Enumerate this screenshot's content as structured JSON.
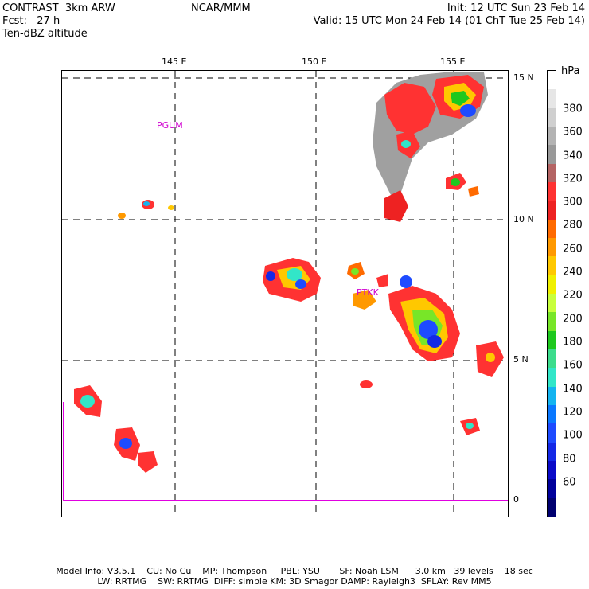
{
  "header": {
    "title": "CONTRAST  3km ARW",
    "forecast": "Fcst:   27 h",
    "field": "Ten-dBZ altitude",
    "center": "NCAR/MMM",
    "init": "Init: 12 UTC Sun 23 Feb 14",
    "valid": "Valid: 15 UTC Mon 24 Feb 14 (01 ChT Tue 25 Feb 14)"
  },
  "map": {
    "lon_labels": [
      "145 E",
      "150 E",
      "155 E"
    ],
    "lat_labels": [
      "15 N",
      "10 N",
      "5 N",
      "0"
    ],
    "stations": [
      {
        "name": "PGUM"
      },
      {
        "name": "PTKK"
      }
    ]
  },
  "legend": {
    "unit": "hPa",
    "levels": [
      "380",
      "360",
      "340",
      "320",
      "300",
      "280",
      "260",
      "240",
      "220",
      "200",
      "180",
      "160",
      "140",
      "120",
      "100",
      "80",
      "60"
    ],
    "colors": [
      "#ffffff",
      "#e6e6e6",
      "#cfcfcf",
      "#b3b3b3",
      "#999999",
      "#b46464",
      "#ff3232",
      "#ee2222",
      "#ff6a00",
      "#ff9900",
      "#ffc800",
      "#f0f000",
      "#c8ff3c",
      "#78e628",
      "#1ec81e",
      "#3cdc8c",
      "#32e6c8",
      "#14b4f0",
      "#0a78ff",
      "#1e4bff",
      "#1428e6",
      "#0a0ac8",
      "#00009b",
      "#000070"
    ]
  },
  "footer": {
    "line1": "Model Info: V3.5.1    CU: No Cu    MP: Thompson     PBL: YSU       SF: Noah LSM      3.0 km   39 levels    18 sec",
    "line2": "LW: RRTMG    SW: RRTMG  DIFF: simple KM: 3D Smagor DAMP: Rayleigh3  SFLAY: Rev MM5"
  }
}
